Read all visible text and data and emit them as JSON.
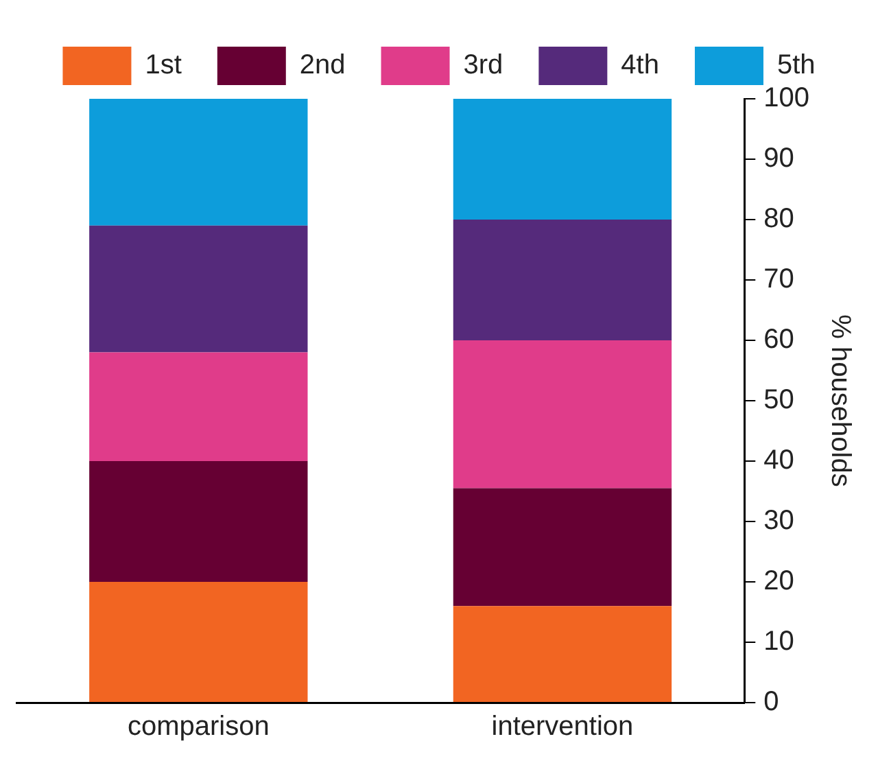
{
  "chart_data": {
    "type": "bar",
    "stacked": true,
    "categories": [
      "comparison",
      "intervention"
    ],
    "series": [
      {
        "name": "1st",
        "color": "#f26522",
        "values": [
          20,
          16
        ]
      },
      {
        "name": "2nd",
        "color": "#660033",
        "values": [
          20,
          19.5
        ]
      },
      {
        "name": "3rd",
        "color": "#e03c8a",
        "values": [
          18,
          24.5
        ]
      },
      {
        "name": "4th",
        "color": "#552a7b",
        "values": [
          21,
          20
        ]
      },
      {
        "name": "5th",
        "color": "#0d9ddb",
        "values": [
          21,
          20
        ]
      }
    ],
    "ylabel": "% households",
    "ylim": [
      0,
      100
    ],
    "yticks": [
      0,
      10,
      20,
      30,
      40,
      50,
      60,
      70,
      80,
      90,
      100
    ],
    "grid": false,
    "legend": "top"
  }
}
